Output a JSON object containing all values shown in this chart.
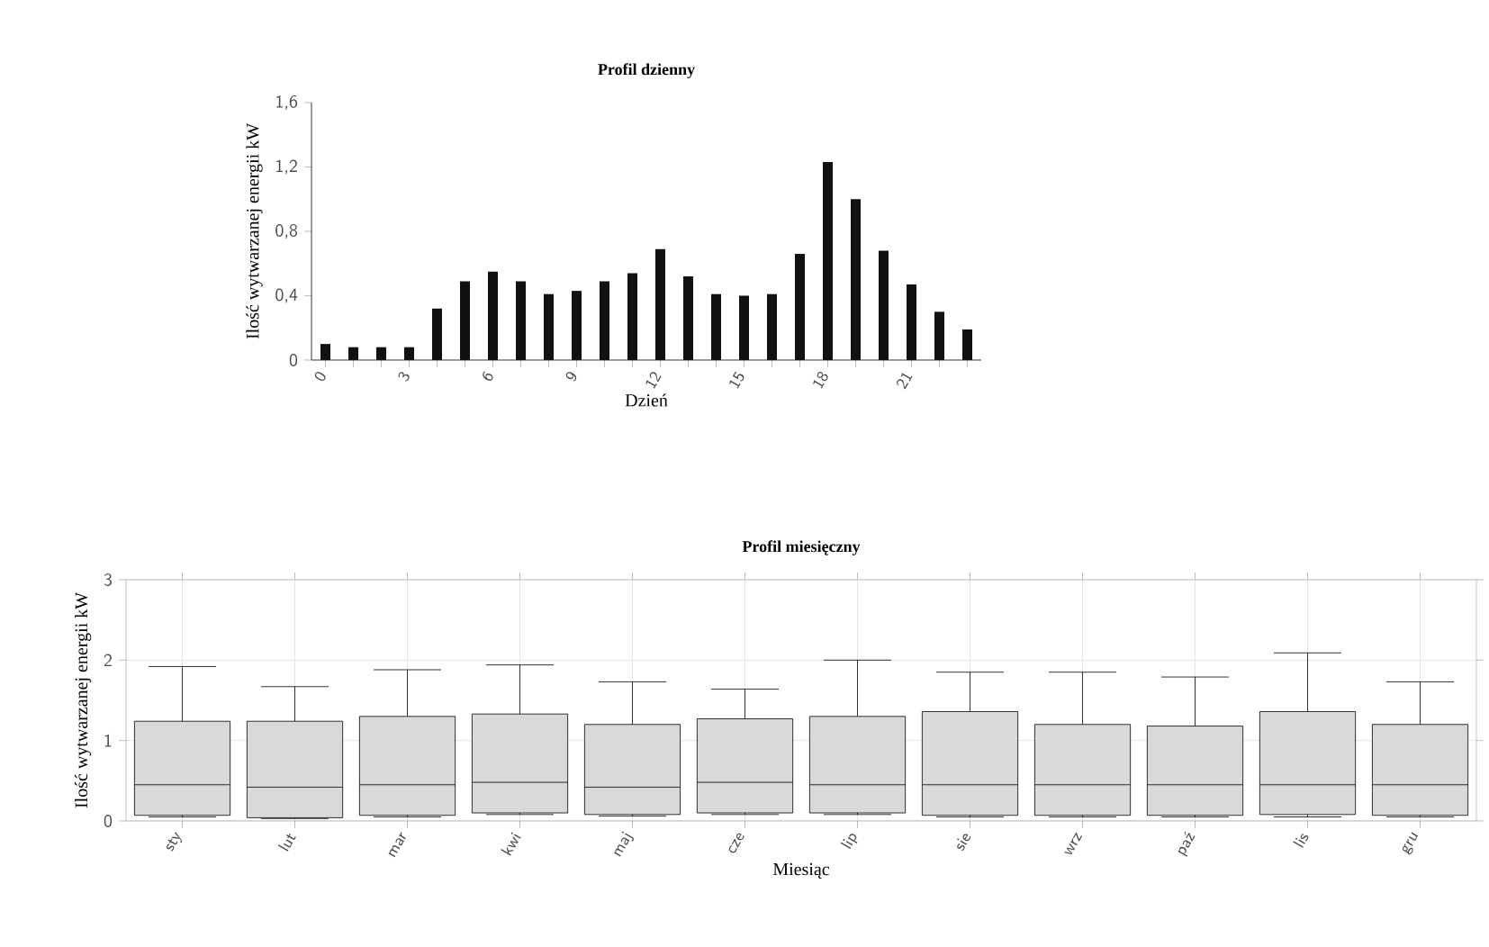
{
  "chart_data": [
    {
      "type": "bar",
      "title": "Profil dzienny",
      "xlabel": "Dzień",
      "ylabel": "Ilość wytwarzanej energii kW",
      "categories": [
        "0",
        null,
        null,
        "3",
        null,
        null,
        "6",
        null,
        null,
        "9",
        null,
        null,
        "12",
        null,
        null,
        "15",
        null,
        null,
        "18",
        null,
        null,
        "21",
        null,
        null
      ],
      "values": [
        0.1,
        0.08,
        0.08,
        0.08,
        0.32,
        0.49,
        0.55,
        0.49,
        0.41,
        0.43,
        0.49,
        0.54,
        0.69,
        0.52,
        0.41,
        0.4,
        0.41,
        0.66,
        1.23,
        1.0,
        0.68,
        0.47,
        0.3,
        0.19
      ],
      "color": "#111111",
      "ylim": [
        0,
        1.6
      ],
      "yticks": [
        0,
        {
          "value": 0.4,
          "label": "0,4"
        },
        {
          "value": 0.8,
          "label": "0,8"
        },
        {
          "value": 1.2,
          "label": "1,2"
        },
        {
          "value": 1.6,
          "label": "1,6"
        }
      ]
    },
    {
      "type": "box",
      "title": "Profil miesięczny",
      "xlabel": "Miesiąc",
      "ylabel": "Ilość wytwarzanej energii kW",
      "categories": [
        "sty",
        "lut",
        "mar",
        "kwi",
        "maj",
        "cze",
        "lip",
        "sie",
        "wrz",
        "paź",
        "lis",
        "gru"
      ],
      "boxes": [
        {
          "low": 0.05,
          "q1": 0.07,
          "median": 0.45,
          "q3": 1.24,
          "high": 1.92
        },
        {
          "low": 0.03,
          "q1": 0.04,
          "median": 0.42,
          "q3": 1.24,
          "high": 1.67
        },
        {
          "low": 0.05,
          "q1": 0.07,
          "median": 0.45,
          "q3": 1.3,
          "high": 1.88
        },
        {
          "low": 0.08,
          "q1": 0.1,
          "median": 0.48,
          "q3": 1.33,
          "high": 1.94
        },
        {
          "low": 0.06,
          "q1": 0.08,
          "median": 0.42,
          "q3": 1.2,
          "high": 1.73
        },
        {
          "low": 0.08,
          "q1": 0.1,
          "median": 0.48,
          "q3": 1.27,
          "high": 1.64
        },
        {
          "low": 0.08,
          "q1": 0.1,
          "median": 0.45,
          "q3": 1.3,
          "high": 2.0
        },
        {
          "low": 0.05,
          "q1": 0.07,
          "median": 0.45,
          "q3": 1.36,
          "high": 1.85
        },
        {
          "low": 0.05,
          "q1": 0.07,
          "median": 0.45,
          "q3": 1.2,
          "high": 1.85
        },
        {
          "low": 0.05,
          "q1": 0.07,
          "median": 0.45,
          "q3": 1.18,
          "high": 1.79
        },
        {
          "low": 0.05,
          "q1": 0.08,
          "median": 0.45,
          "q3": 1.36,
          "high": 2.09
        },
        {
          "low": 0.05,
          "q1": 0.07,
          "median": 0.45,
          "q3": 1.2,
          "high": 1.73
        }
      ],
      "color": "#d9d9d9",
      "ylim": [
        0,
        3
      ],
      "yticks": [
        0,
        1,
        2,
        3
      ],
      "grid": true
    }
  ]
}
